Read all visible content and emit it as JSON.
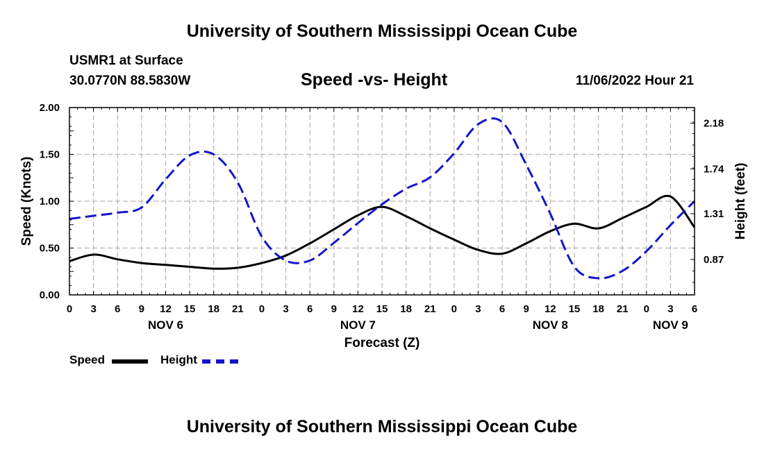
{
  "header": {
    "main_title": "University of Southern Mississippi Ocean Cube",
    "station": "USMR1 at Surface",
    "coordinates": "30.0770N  88.5830W",
    "datetime": "11/06/2022 Hour 21",
    "footer_title": "University of Southern Mississippi Ocean Cube"
  },
  "chart_data": {
    "type": "line",
    "title": "Speed -vs- Height",
    "xlabel": "Forecast (Z)",
    "ylabel": "Speed (Knots)",
    "ylabel_right": "Height (feet)",
    "x_tick_labels": [
      "0",
      "3",
      "6",
      "9",
      "12",
      "15",
      "18",
      "21",
      "0",
      "3",
      "6",
      "9",
      "12",
      "15",
      "18",
      "21",
      "0",
      "3",
      "6",
      "9",
      "12",
      "15",
      "18",
      "21",
      "0",
      "3",
      "6"
    ],
    "day_labels": [
      {
        "label": "NOV 6",
        "hour": 12
      },
      {
        "label": "NOV 7",
        "hour": 36
      },
      {
        "label": "NOV 8",
        "hour": 60
      },
      {
        "label": "NOV 9",
        "hour": 75
      }
    ],
    "xlim": [
      0,
      78
    ],
    "ylim": [
      0,
      2.0
    ],
    "y_ticks": [
      "0.00",
      "0.50",
      "1.00",
      "1.50",
      "2.00"
    ],
    "y2lim": [
      0.53,
      2.33
    ],
    "y2_ticks": [
      "0.87",
      "1.31",
      "1.74",
      "2.18"
    ],
    "grid": true,
    "series": [
      {
        "name": "Speed",
        "color": "#000000",
        "axis": "left",
        "hours": [
          0,
          3,
          6,
          9,
          12,
          15,
          18,
          21,
          24,
          27,
          30,
          33,
          36,
          39,
          42,
          45,
          48,
          51,
          54,
          57,
          60,
          63,
          66,
          69,
          72,
          75,
          78
        ],
        "values": [
          0.36,
          0.43,
          0.38,
          0.34,
          0.32,
          0.3,
          0.28,
          0.29,
          0.34,
          0.42,
          0.55,
          0.7,
          0.85,
          0.94,
          0.84,
          0.71,
          0.59,
          0.48,
          0.44,
          0.55,
          0.68,
          0.76,
          0.71,
          0.82,
          0.94,
          1.05,
          0.72
        ]
      },
      {
        "name": "Height",
        "color": "#1414cc",
        "axis": "right",
        "hours": [
          0,
          3,
          6,
          9,
          12,
          15,
          18,
          21,
          24,
          27,
          30,
          33,
          36,
          39,
          42,
          45,
          48,
          51,
          54,
          57,
          60,
          63,
          66,
          69,
          72,
          75,
          78
        ],
        "values": [
          1.26,
          1.29,
          1.32,
          1.37,
          1.64,
          1.87,
          1.88,
          1.61,
          1.09,
          0.86,
          0.86,
          1.03,
          1.22,
          1.4,
          1.55,
          1.66,
          1.89,
          2.17,
          2.19,
          1.78,
          1.31,
          0.8,
          0.69,
          0.76,
          0.95,
          1.2,
          1.43
        ]
      }
    ]
  },
  "legend": {
    "speed_label": "Speed",
    "height_label": "Height",
    "speed_color": "#000000",
    "height_color": "#1414cc"
  }
}
